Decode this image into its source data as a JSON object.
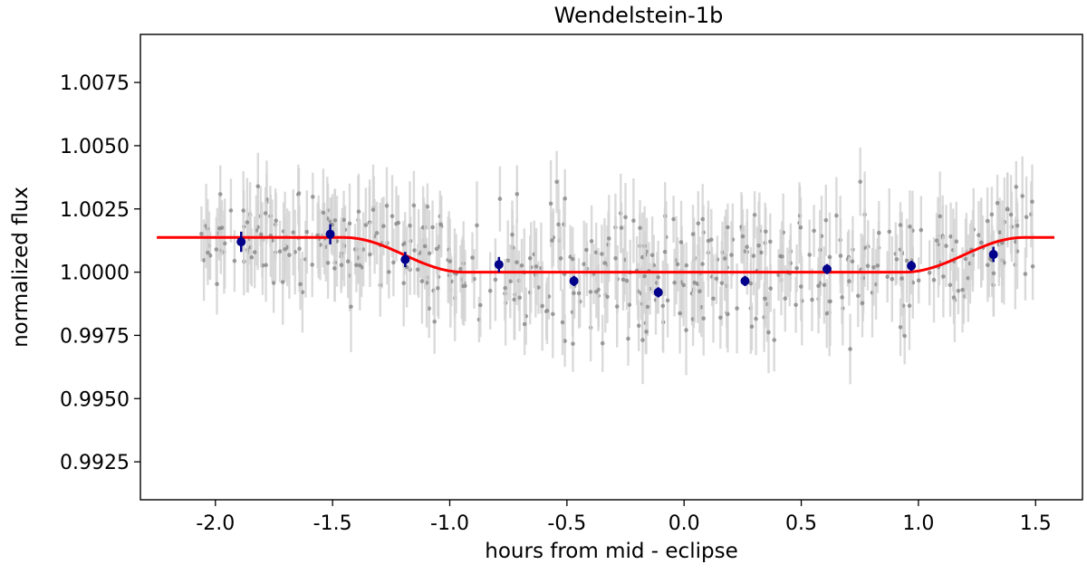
{
  "chart_data": {
    "type": "scatter",
    "title": "Wendelstein-1b",
    "xlabel": "hours from mid - eclipse",
    "ylabel": "normalized flux",
    "xlim": [
      -2.32,
      1.7
    ],
    "ylim": [
      0.991,
      1.0094
    ],
    "x_ticks": [
      -2.0,
      -1.5,
      -1.0,
      -0.5,
      0.0,
      0.5,
      1.0,
      1.5
    ],
    "x_tick_labels": [
      "-2.0",
      "-1.5",
      "-1.0",
      "-0.5",
      "0.0",
      "0.5",
      "1.0",
      "1.5"
    ],
    "y_ticks": [
      0.9925,
      0.995,
      0.9975,
      1.0,
      1.0025,
      1.005,
      1.0075
    ],
    "y_tick_labels": [
      "0.9925",
      "0.9950",
      "0.9975",
      "1.0000",
      "1.0025",
      "1.0050",
      "1.0075"
    ],
    "grid": false,
    "colors": {
      "raw": "#808080",
      "raw_err": "#d3d3d3",
      "binned": "#00008b",
      "model": "#ff0000"
    },
    "raw_x_range": [
      -2.07,
      1.5
    ],
    "raw_point_count": 520,
    "binned": {
      "x": [
        -1.89,
        -1.51,
        -1.19,
        -0.79,
        -0.47,
        -0.11,
        0.26,
        0.61,
        0.97,
        1.32
      ],
      "y": [
        1.0012,
        1.0015,
        1.0005,
        1.0003,
        0.99965,
        0.9992,
        0.99965,
        1.00012,
        1.00025,
        1.0007
      ],
      "err": [
        0.0004,
        0.0004,
        0.0003,
        0.0003,
        0.0002,
        0.0002,
        0.0002,
        0.0002,
        0.0002,
        0.0003
      ]
    },
    "model": {
      "x": [
        -2.25,
        -1.45,
        -1.3,
        -1.1,
        -0.94,
        0.94,
        1.1,
        1.3,
        1.45,
        1.58
      ],
      "y": [
        1.00137,
        1.00137,
        1.0011,
        1.0004,
        1.0,
        1.0,
        1.0004,
        1.0011,
        1.00137,
        1.00137
      ]
    }
  }
}
